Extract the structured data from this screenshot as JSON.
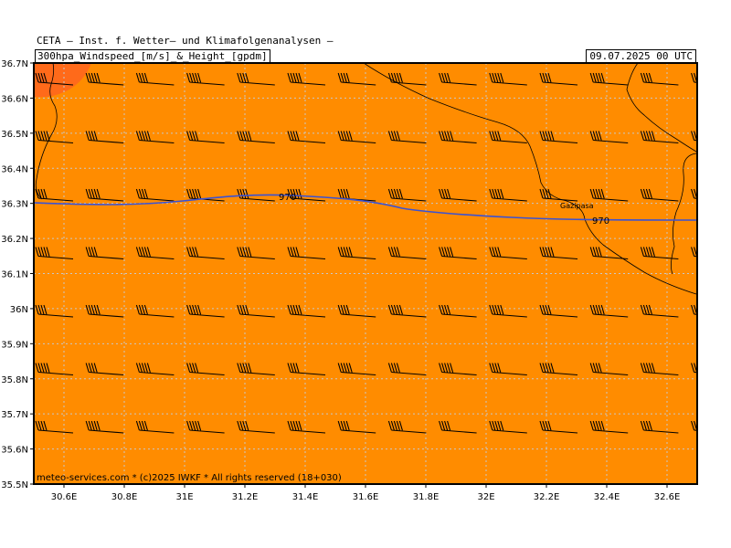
{
  "header": {
    "title": "CETA – Inst. f. Wetter– und Klimafolgenanalysen –",
    "subtitle": "300hpa_Windspeed_[m/s]_&_Height_[gpdm]",
    "timestamp": "09.07.2025 00 UTC"
  },
  "map": {
    "lon_range": [
      30.5,
      32.7
    ],
    "lat_range": [
      35.5,
      36.7
    ],
    "lat_labels": [
      "36.7N",
      "36.6N",
      "36.5N",
      "36.4N",
      "36.3N",
      "36.2N",
      "36.1N",
      "36N",
      "35.9N",
      "35.8N",
      "35.7N",
      "35.6N",
      "35.5N"
    ],
    "lon_labels": [
      "30.6E",
      "30.8E",
      "31E",
      "31.2E",
      "31.4E",
      "31.6E",
      "31.8E",
      "32E",
      "32.2E",
      "32.4E",
      "32.6E"
    ],
    "background_color": "#ff8c00",
    "high_wind_color": "#ff6a1a",
    "contour_color": "#3a52d4",
    "grid_color": "#c8c8c8",
    "contours": [
      {
        "label": "970"
      },
      {
        "label": "970"
      }
    ],
    "place": {
      "name": "Gazipasa"
    },
    "copyright": "meteo-services.com * (c)2025 IWKF * All rights reserved (18+030)"
  }
}
